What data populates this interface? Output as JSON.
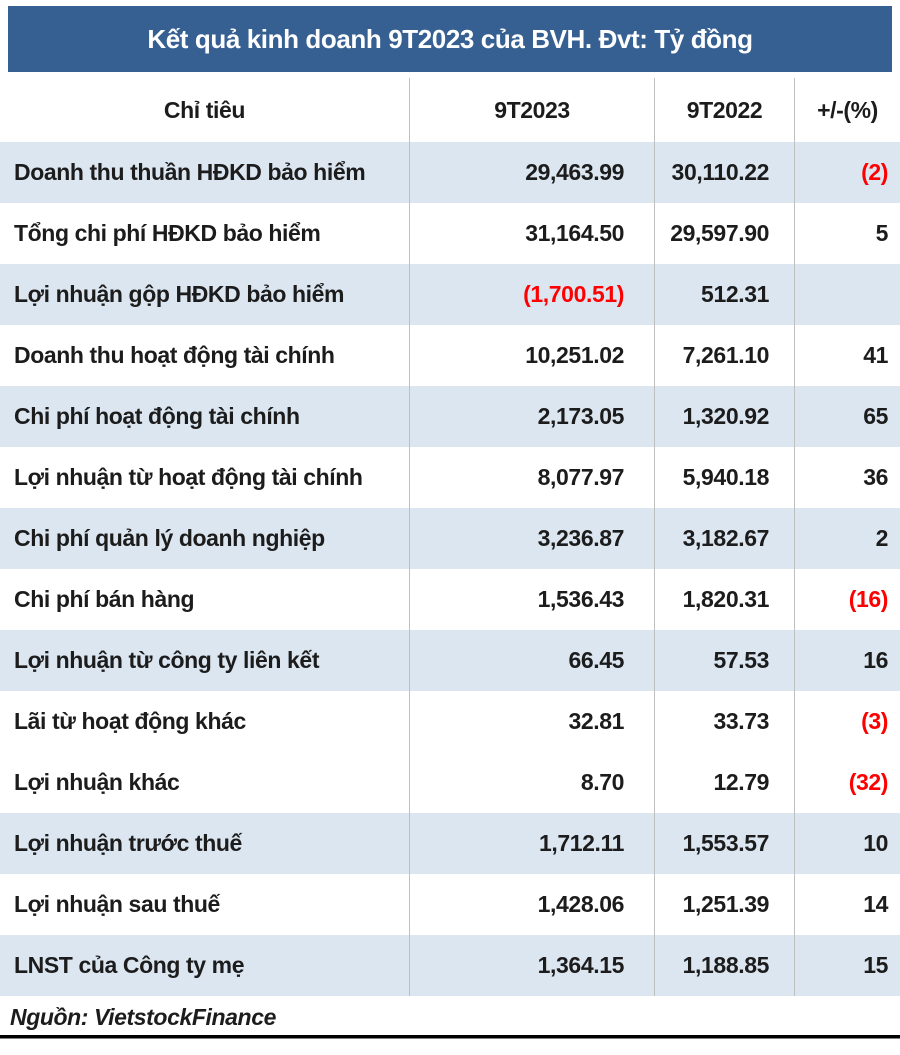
{
  "colors": {
    "title_bar_bg": "#376092",
    "stripe_row_bg": "#DCE6F1",
    "negative_value_color": "#FF0000",
    "text_color": "#1C1C1C",
    "column_divider": "#BFBFBF"
  },
  "chart_data": {
    "type": "table",
    "title": "Kết quả kinh doanh 9T2023 của BVH. Đvt: Tỷ đồng",
    "columns": [
      "Chỉ tiêu",
      "9T2023",
      "9T2022",
      "+/-(%)"
    ],
    "negative_format": "parentheses shown in red",
    "rows": [
      {
        "label": "Doanh thu thuần HĐKD bảo hiểm",
        "v9t2023": "29,463.99",
        "v9t2022": "30,110.22",
        "change_pct": "(2)",
        "shaded": true
      },
      {
        "label": "Tổng chi phí HĐKD bảo hiểm",
        "v9t2023": "31,164.50",
        "v9t2022": "29,597.90",
        "change_pct": "5",
        "shaded": false
      },
      {
        "label": "Lợi nhuận gộp HĐKD bảo hiểm",
        "v9t2023": "(1,700.51)",
        "v9t2022": "512.31",
        "change_pct": "",
        "shaded": true
      },
      {
        "label": "Doanh thu hoạt động tài chính",
        "v9t2023": "10,251.02",
        "v9t2022": "7,261.10",
        "change_pct": "41",
        "shaded": false
      },
      {
        "label": "Chi phí hoạt động tài chính",
        "v9t2023": "2,173.05",
        "v9t2022": "1,320.92",
        "change_pct": "65",
        "shaded": true
      },
      {
        "label": "Lợi nhuận từ hoạt động tài chính",
        "v9t2023": "8,077.97",
        "v9t2022": "5,940.18",
        "change_pct": "36",
        "shaded": false
      },
      {
        "label": "Chi phí quản lý doanh nghiệp",
        "v9t2023": "3,236.87",
        "v9t2022": "3,182.67",
        "change_pct": "2",
        "shaded": true
      },
      {
        "label": "Chi phí bán hàng",
        "v9t2023": "1,536.43",
        "v9t2022": "1,820.31",
        "change_pct": "(16)",
        "shaded": false
      },
      {
        "label": "Lợi nhuận từ công ty liên kết",
        "v9t2023": "66.45",
        "v9t2022": "57.53",
        "change_pct": "16",
        "shaded": true
      },
      {
        "label": "Lãi từ hoạt động khác",
        "v9t2023": "32.81",
        "v9t2022": "33.73",
        "change_pct": "(3)",
        "shaded": false
      },
      {
        "label": "Lợi nhuận khác",
        "v9t2023": "8.70",
        "v9t2022": "12.79",
        "change_pct": "(32)",
        "shaded": false
      },
      {
        "label": "Lợi nhuận trước thuế",
        "v9t2023": "1,712.11",
        "v9t2022": "1,553.57",
        "change_pct": "10",
        "shaded": true
      },
      {
        "label": "Lợi nhuận sau thuế",
        "v9t2023": "1,428.06",
        "v9t2022": "1,251.39",
        "change_pct": "14",
        "shaded": false
      },
      {
        "label": "LNST của Công ty mẹ",
        "v9t2023": "1,364.15",
        "v9t2022": "1,188.85",
        "change_pct": "15",
        "shaded": true
      }
    ],
    "source": "Nguồn: VietstockFinance"
  }
}
